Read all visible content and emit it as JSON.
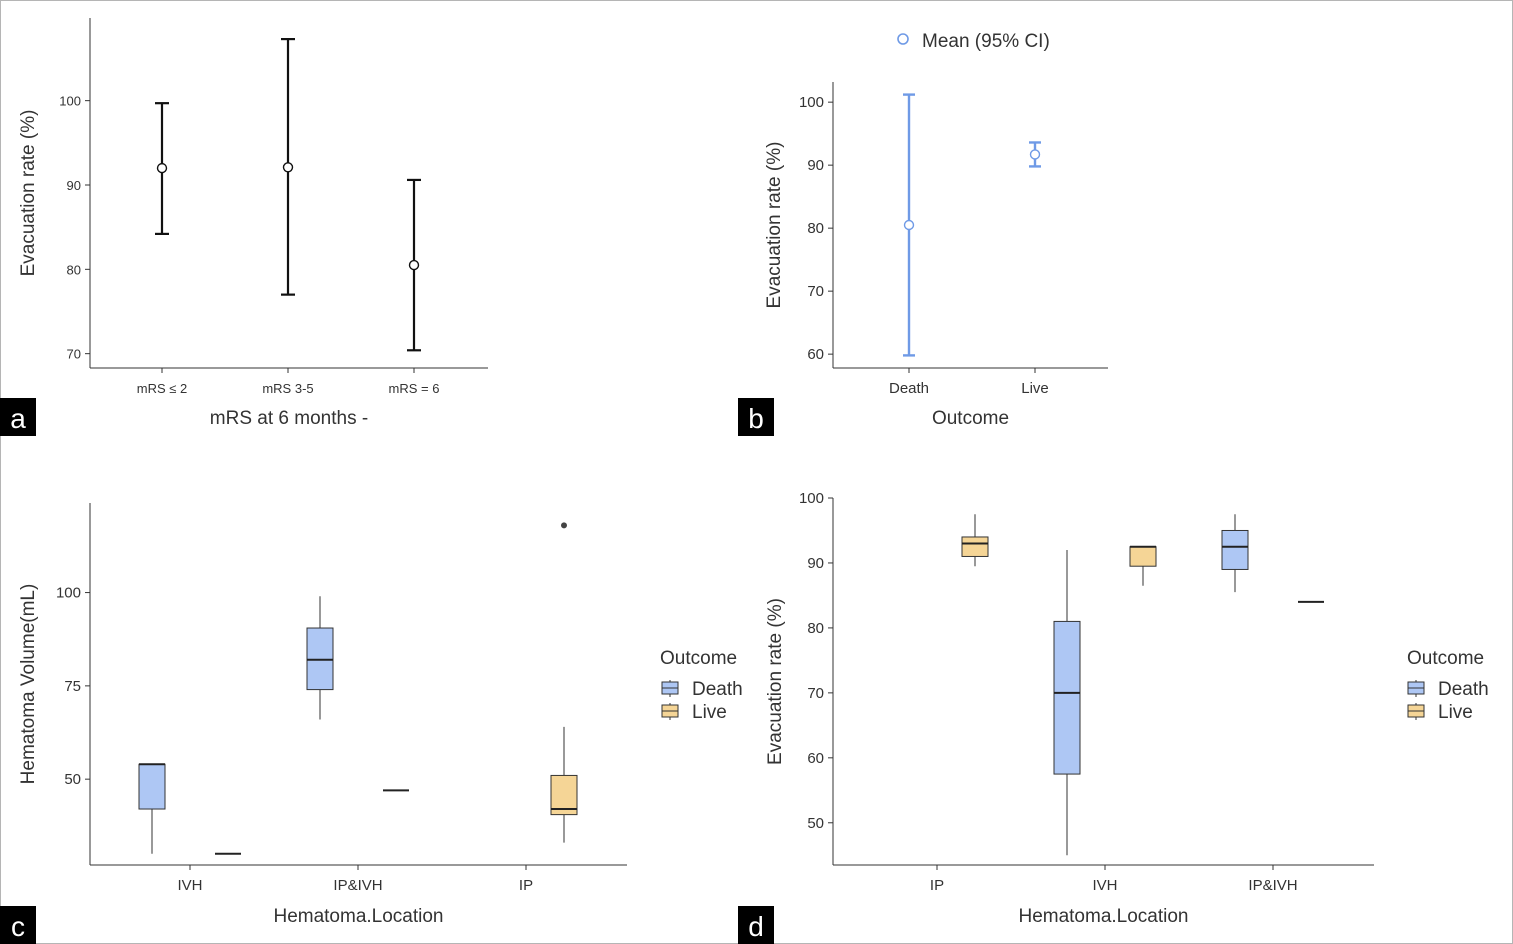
{
  "panels": {
    "a": {
      "label": "a"
    },
    "b": {
      "label": "b"
    },
    "c": {
      "label": "c"
    },
    "d": {
      "label": "d"
    }
  },
  "legends": {
    "b": {
      "entry": "Mean (95% CI)"
    },
    "c": {
      "title": "Outcome",
      "entries": [
        "Death",
        "Live"
      ]
    },
    "d": {
      "title": "Outcome",
      "entries": [
        "Death",
        "Live"
      ]
    }
  },
  "colors": {
    "death_fill": "#aec7f4",
    "live_fill": "#f5d596",
    "ci_blue": "#6f9ae6",
    "axis": "#333333",
    "errorbar_black": "#111111"
  },
  "chart_data": [
    {
      "type": "errorbar",
      "panel": "a",
      "xlabel": "mRS at 6 months -",
      "ylabel": "Evacuation rate (%)",
      "categories": [
        "mRS ≤ 2",
        "mRS 3-5",
        "mRS = 6"
      ],
      "mean": [
        92,
        92.1,
        80.5
      ],
      "ci_low": [
        84.2,
        77,
        70.4
      ],
      "ci_high": [
        99.7,
        107.3,
        90.6
      ],
      "yticks": [
        70,
        80,
        90,
        100
      ],
      "ylim": [
        68.3,
        109.8
      ]
    },
    {
      "type": "errorbar",
      "panel": "b",
      "xlabel": "Outcome",
      "ylabel": "Evacuation rate (%)",
      "categories": [
        "Death",
        "Live"
      ],
      "series_name": "Mean (95% CI)",
      "mean": [
        80.5,
        91.7
      ],
      "ci_low": [
        59.8,
        89.8
      ],
      "ci_high": [
        101.2,
        93.6
      ],
      "yticks": [
        60,
        70,
        80,
        90,
        100
      ],
      "ylim": [
        57.8,
        103.2
      ]
    },
    {
      "type": "box",
      "panel": "c",
      "xlabel": "Hematoma.Location",
      "ylabel": "Hematoma Volume(mL)",
      "categories": [
        "IVH",
        "IP&IVH",
        "IP"
      ],
      "legend_title": "Outcome",
      "series": [
        {
          "name": "Death",
          "boxes": [
            {
              "category": "IVH",
              "min": 30,
              "q1": 42,
              "median": 54,
              "q3": 54,
              "max": 54
            },
            {
              "category": "IP&IVH",
              "min": 66,
              "q1": 74,
              "median": 82,
              "q3": 90.5,
              "max": 99
            }
          ]
        },
        {
          "name": "Live",
          "boxes": [
            {
              "category": "IVH",
              "min": 30,
              "q1": 30,
              "median": 30,
              "q3": 30,
              "max": 30
            },
            {
              "category": "IP&IVH",
              "min": 47,
              "q1": 47,
              "median": 47,
              "q3": 47,
              "max": 47
            },
            {
              "category": "IP",
              "min": 33,
              "q1": 40.5,
              "median": 42,
              "q3": 51,
              "max": 64,
              "outliers": [
                118
              ]
            }
          ]
        }
      ],
      "yticks": [
        50,
        75,
        100
      ],
      "ylim": [
        27,
        124
      ]
    },
    {
      "type": "box",
      "panel": "d",
      "xlabel": "Hematoma.Location",
      "ylabel": "Evacuation rate (%)",
      "categories": [
        "IP",
        "IVH",
        "IP&IVH"
      ],
      "legend_title": "Outcome",
      "series": [
        {
          "name": "Death",
          "boxes": [
            {
              "category": "IVH",
              "min": 45,
              "q1": 57.5,
              "median": 70,
              "q3": 81,
              "max": 92
            },
            {
              "category": "IP&IVH",
              "min": 85.5,
              "q1": 89,
              "median": 92.5,
              "q3": 95,
              "max": 97.5
            }
          ]
        },
        {
          "name": "Live",
          "boxes": [
            {
              "category": "IP",
              "min": 89.5,
              "q1": 91,
              "median": 93,
              "q3": 94,
              "max": 97.5
            },
            {
              "category": "IVH",
              "min": 86.5,
              "q1": 89.5,
              "median": 92.5,
              "q3": 92.5,
              "max": 92.5
            },
            {
              "category": "IP&IVH",
              "min": 84,
              "q1": 84,
              "median": 84,
              "q3": 84,
              "max": 84
            }
          ]
        }
      ],
      "yticks": [
        50,
        60,
        70,
        80,
        90,
        100
      ],
      "ylim": [
        43.5,
        100
      ]
    }
  ]
}
